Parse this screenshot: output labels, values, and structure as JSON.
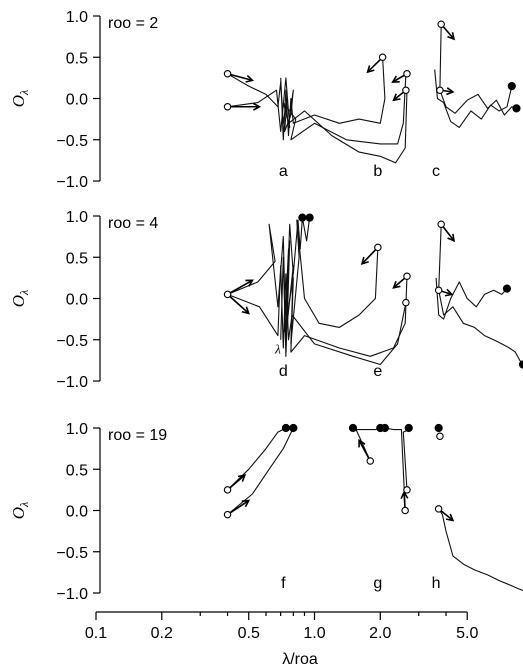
{
  "chart_data": {
    "type": "line",
    "ylabel": "Oλ",
    "xlabel": "λ/roa",
    "x_scale": "log",
    "xlim": [
      0.1,
      9
    ],
    "x_ticks": [
      {
        "value": 0.1,
        "label": "0.1"
      },
      {
        "value": 0.2,
        "label": "0.2"
      },
      {
        "value": 0.5,
        "label": "0.5"
      },
      {
        "value": 1.0,
        "label": "1.0"
      },
      {
        "value": 2.0,
        "label": "2.0"
      },
      {
        "value": 5.0,
        "label": "5.0"
      }
    ],
    "ylim": [
      -1.0,
      1.0
    ],
    "y_ticks": [
      {
        "value": 1.0,
        "label": "1.0"
      },
      {
        "value": 0.5,
        "label": "0.5"
      },
      {
        "value": 0.0,
        "label": "0.0"
      },
      {
        "value": -0.5,
        "label": "−0.5"
      },
      {
        "value": -1.0,
        "label": "−1.0"
      }
    ],
    "panels": [
      {
        "title": "roo = 2",
        "letters": [
          {
            "text": "a",
            "x": 0.72
          },
          {
            "text": "b",
            "x": 1.95
          },
          {
            "text": "c",
            "x": 3.6
          }
        ],
        "traces": [
          [
            [
              0.4,
              0.3
            ],
            [
              0.5,
              0.15
            ],
            [
              0.6,
              0.05
            ],
            [
              0.68,
              -0.1
            ],
            [
              0.7,
              0.2
            ],
            [
              0.72,
              -0.3
            ],
            [
              0.75,
              0.0
            ],
            [
              0.73,
              -0.4
            ],
            [
              0.78,
              -0.2
            ],
            [
              0.8,
              0.1
            ],
            [
              0.76,
              -0.3
            ],
            [
              0.9,
              -0.15
            ],
            [
              1.2,
              -0.45
            ],
            [
              1.6,
              -0.65
            ],
            [
              2.0,
              -0.7
            ],
            [
              2.35,
              -0.78
            ],
            [
              2.6,
              -0.6
            ],
            [
              2.65,
              0.1
            ]
          ],
          [
            [
              0.4,
              -0.1
            ],
            [
              0.55,
              -0.05
            ],
            [
              0.67,
              0.1
            ],
            [
              0.7,
              -0.4
            ],
            [
              0.74,
              0.25
            ],
            [
              0.77,
              -0.35
            ],
            [
              0.72,
              -0.05
            ],
            [
              0.82,
              -0.25
            ],
            [
              0.78,
              -0.5
            ],
            [
              1.0,
              -0.3
            ],
            [
              1.4,
              -0.5
            ],
            [
              2.0,
              -0.55
            ],
            [
              2.4,
              -0.55
            ],
            [
              2.55,
              -0.3
            ],
            [
              2.62,
              0.3
            ]
          ],
          [
            [
              0.7,
              0.25
            ],
            [
              0.72,
              -0.5
            ],
            [
              0.74,
              0.1
            ],
            [
              0.76,
              -0.45
            ],
            [
              0.78,
              0.0
            ],
            [
              0.8,
              -0.3
            ],
            [
              1.0,
              -0.2
            ],
            [
              1.3,
              -0.3
            ],
            [
              1.6,
              -0.25
            ],
            [
              2.0,
              -0.3
            ],
            [
              2.1,
              0.0
            ],
            [
              2.05,
              0.5
            ]
          ],
          [
            [
              3.55,
              0.35
            ],
            [
              3.65,
              0.0
            ],
            [
              3.9,
              -0.05
            ],
            [
              4.2,
              -0.28
            ],
            [
              4.6,
              -0.35
            ],
            [
              5.2,
              -0.15
            ],
            [
              5.8,
              -0.25
            ],
            [
              6.4,
              -0.08
            ],
            [
              7.0,
              -0.15
            ],
            [
              7.6,
              -0.1
            ],
            [
              8.0,
              0.15
            ]
          ],
          [
            [
              3.8,
              0.9
            ],
            [
              3.75,
              0.1
            ],
            [
              4.0,
              -0.1
            ],
            [
              4.4,
              -0.18
            ],
            [
              5.0,
              -0.02
            ],
            [
              5.6,
              0.05
            ],
            [
              6.2,
              -0.12
            ],
            [
              6.8,
              -0.02
            ],
            [
              7.4,
              -0.2
            ],
            [
              8.0,
              -0.1
            ],
            [
              8.4,
              -0.12
            ]
          ]
        ],
        "open_markers": [
          [
            0.4,
            0.3
          ],
          [
            0.4,
            -0.1
          ],
          [
            2.05,
            0.5
          ],
          [
            2.65,
            0.3
          ],
          [
            2.62,
            0.1
          ],
          [
            3.8,
            0.9
          ],
          [
            3.75,
            0.1
          ]
        ],
        "filled_markers": [
          [
            8.0,
            0.15
          ],
          [
            8.4,
            -0.12
          ]
        ],
        "arrows": [
          [
            [
              0.4,
              0.3
            ],
            [
              0.52,
              0.22
            ]
          ],
          [
            [
              0.4,
              -0.1
            ],
            [
              0.56,
              -0.1
            ]
          ],
          [
            [
              2.05,
              0.5
            ],
            [
              1.75,
              0.32
            ]
          ],
          [
            [
              2.65,
              0.3
            ],
            [
              2.28,
              0.2
            ]
          ],
          [
            [
              2.62,
              0.1
            ],
            [
              2.3,
              -0.02
            ]
          ],
          [
            [
              3.8,
              0.9
            ],
            [
              4.35,
              0.72
            ]
          ],
          [
            [
              3.75,
              0.1
            ],
            [
              4.3,
              0.08
            ]
          ]
        ]
      },
      {
        "title": "roo = 4",
        "letters": [
          {
            "text": "d",
            "x": 0.72
          },
          {
            "text": "e",
            "x": 1.95
          }
        ],
        "traces": [
          [
            [
              0.4,
              0.05
            ],
            [
              0.55,
              0.2
            ],
            [
              0.66,
              0.45
            ],
            [
              0.62,
              0.9
            ],
            [
              0.68,
              -0.1
            ],
            [
              0.72,
              0.75
            ],
            [
              0.74,
              -0.55
            ],
            [
              0.76,
              0.6
            ],
            [
              0.73,
              -0.4
            ],
            [
              0.8,
              0.25
            ],
            [
              0.78,
              -0.65
            ],
            [
              0.9,
              -0.45
            ],
            [
              1.3,
              -0.6
            ],
            [
              1.8,
              -0.7
            ],
            [
              2.3,
              -0.6
            ],
            [
              2.6,
              -0.3
            ],
            [
              2.65,
              0.27
            ]
          ],
          [
            [
              0.4,
              0.05
            ],
            [
              0.56,
              -0.1
            ],
            [
              0.68,
              -0.45
            ],
            [
              0.7,
              0.4
            ],
            [
              0.72,
              -0.6
            ],
            [
              0.74,
              0.3
            ],
            [
              0.76,
              -0.5
            ],
            [
              0.79,
              -0.2
            ],
            [
              1.0,
              -0.55
            ],
            [
              1.5,
              -0.7
            ],
            [
              2.0,
              -0.8
            ],
            [
              2.4,
              -0.55
            ],
            [
              2.62,
              -0.05
            ]
          ],
          [
            [
              0.7,
              -0.5
            ],
            [
              0.72,
              0.5
            ],
            [
              0.74,
              -0.7
            ],
            [
              0.77,
              0.7
            ],
            [
              0.75,
              -0.3
            ],
            [
              0.8,
              0.4
            ],
            [
              0.78,
              -0.55
            ],
            [
              0.85,
              0.5
            ],
            [
              0.83,
              0.95
            ],
            [
              0.9,
              0.0
            ],
            [
              1.05,
              -0.3
            ],
            [
              1.3,
              -0.35
            ],
            [
              1.6,
              -0.2
            ],
            [
              1.9,
              0.0
            ],
            [
              1.95,
              0.62
            ]
          ],
          [
            [
              0.74,
              -0.4
            ],
            [
              0.77,
              0.9
            ],
            [
              0.8,
              0.3
            ],
            [
              0.84,
              0.95
            ],
            [
              0.86,
              0.6
            ],
            [
              0.88,
              0.98
            ],
            [
              0.92,
              0.7
            ],
            [
              0.95,
              0.98
            ]
          ],
          [
            [
              3.6,
              0.25
            ],
            [
              3.7,
              -0.2
            ],
            [
              3.9,
              -0.25
            ],
            [
              4.2,
              0.0
            ],
            [
              4.6,
              0.2
            ],
            [
              5.0,
              0.0
            ],
            [
              5.5,
              -0.1
            ],
            [
              6.0,
              0.05
            ],
            [
              6.6,
              0.1
            ],
            [
              7.2,
              0.05
            ],
            [
              7.6,
              0.12
            ]
          ],
          [
            [
              3.8,
              0.9
            ],
            [
              3.7,
              0.1
            ],
            [
              3.9,
              -0.2
            ],
            [
              4.3,
              -0.1
            ],
            [
              4.8,
              -0.3
            ],
            [
              5.4,
              -0.35
            ],
            [
              6.0,
              -0.45
            ],
            [
              6.6,
              -0.5
            ],
            [
              7.2,
              -0.55
            ],
            [
              7.8,
              -0.6
            ],
            [
              8.3,
              -0.65
            ],
            [
              8.7,
              -0.75
            ],
            [
              9.0,
              -0.8
            ]
          ]
        ],
        "open_markers": [
          [
            0.4,
            0.05
          ],
          [
            1.95,
            0.62
          ],
          [
            2.65,
            0.27
          ],
          [
            2.62,
            -0.05
          ],
          [
            3.8,
            0.9
          ],
          [
            3.7,
            0.1
          ]
        ],
        "filled_markers": [
          [
            0.88,
            0.98
          ],
          [
            0.95,
            0.98
          ],
          [
            7.6,
            0.12
          ],
          [
            9.0,
            -0.8
          ]
        ],
        "arrows": [
          [
            [
              0.4,
              0.05
            ],
            [
              0.52,
              0.22
            ]
          ],
          [
            [
              0.4,
              0.05
            ],
            [
              0.5,
              -0.18
            ]
          ],
          [
            [
              1.95,
              0.62
            ],
            [
              1.65,
              0.42
            ]
          ],
          [
            [
              2.65,
              0.27
            ],
            [
              2.3,
              0.13
            ]
          ],
          [
            [
              3.8,
              0.9
            ],
            [
              4.35,
              0.7
            ]
          ],
          [
            [
              3.7,
              0.1
            ],
            [
              4.25,
              0.05
            ]
          ]
        ],
        "annotations": [
          {
            "text": "λ",
            "x": 0.66,
            "y": -0.62
          }
        ]
      },
      {
        "title": "roo = 19",
        "letters": [
          {
            "text": "f",
            "x": 0.72
          },
          {
            "text": "g",
            "x": 1.95
          },
          {
            "text": "h",
            "x": 3.6
          }
        ],
        "traces": [
          [
            [
              0.4,
              -0.05
            ],
            [
              0.52,
              0.2
            ],
            [
              0.62,
              0.5
            ],
            [
              0.72,
              0.75
            ],
            [
              0.8,
              1.0
            ]
          ],
          [
            [
              0.4,
              0.25
            ],
            [
              0.5,
              0.5
            ],
            [
              0.6,
              0.75
            ],
            [
              0.68,
              0.95
            ],
            [
              0.74,
              1.0
            ]
          ],
          [
            [
              1.8,
              0.6
            ],
            [
              1.55,
              0.98
            ],
            [
              1.9,
              0.98
            ],
            [
              2.0,
              1.0
            ]
          ],
          [
            [
              2.6,
              0.0
            ],
            [
              2.5,
              0.98
            ],
            [
              2.3,
              0.98
            ],
            [
              2.1,
              1.0
            ]
          ],
          [
            [
              2.65,
              0.25
            ],
            [
              2.55,
              0.95
            ],
            [
              2.7,
              0.98
            ]
          ],
          [
            [
              3.7,
              0.02
            ],
            [
              3.85,
              -0.05
            ],
            [
              4.0,
              -0.25
            ],
            [
              4.3,
              -0.55
            ],
            [
              4.8,
              -0.65
            ],
            [
              5.4,
              -0.72
            ],
            [
              6.2,
              -0.78
            ],
            [
              7.0,
              -0.85
            ],
            [
              7.8,
              -0.9
            ],
            [
              8.6,
              -0.95
            ],
            [
              9.0,
              -0.97
            ]
          ]
        ],
        "open_markers": [
          [
            0.4,
            -0.05
          ],
          [
            0.4,
            0.25
          ],
          [
            1.8,
            0.6
          ],
          [
            2.6,
            0.0
          ],
          [
            2.65,
            0.25
          ],
          [
            3.7,
            0.02
          ],
          [
            3.75,
            0.9
          ]
        ],
        "filled_markers": [
          [
            0.74,
            1.0
          ],
          [
            0.8,
            1.0
          ],
          [
            1.5,
            1.0
          ],
          [
            2.0,
            1.0
          ],
          [
            2.1,
            1.0
          ],
          [
            2.7,
            1.0
          ],
          [
            3.7,
            1.0
          ]
        ],
        "arrows": [
          [
            [
              0.4,
              -0.05
            ],
            [
              0.5,
              0.12
            ]
          ],
          [
            [
              0.4,
              0.25
            ],
            [
              0.48,
              0.43
            ]
          ],
          [
            [
              1.8,
              0.6
            ],
            [
              1.6,
              0.85
            ]
          ],
          [
            [
              2.6,
              0.0
            ],
            [
              2.57,
              0.22
            ]
          ],
          [
            [
              3.7,
              0.02
            ],
            [
              4.3,
              -0.12
            ]
          ]
        ]
      }
    ]
  }
}
